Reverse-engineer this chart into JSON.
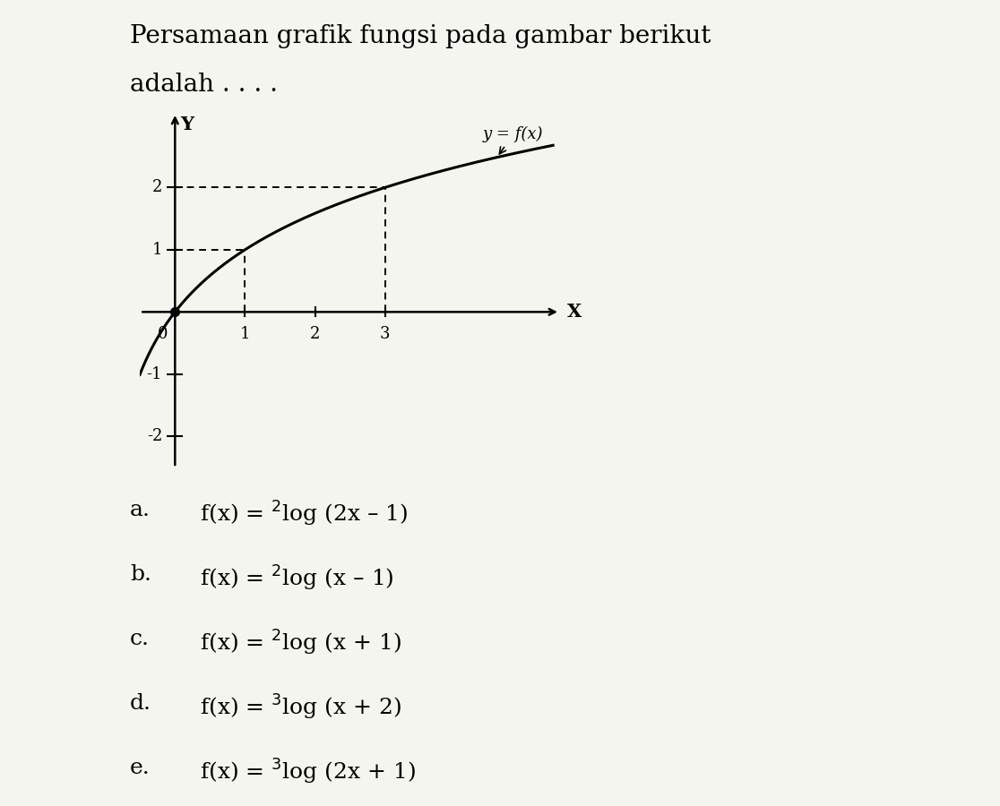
{
  "title_line1": "Persamaan grafik fungsi pada gambar berikut",
  "title_line2": "adalah . . . .",
  "title_fontsize": 20,
  "curve_label": "y = f(x)",
  "curve_color": "#000000",
  "background_color": "#f5f5f0",
  "xlim": [
    -0.5,
    5.5
  ],
  "ylim": [
    -2.5,
    3.2
  ],
  "x_ticks": [
    1,
    2,
    3
  ],
  "y_ticks": [
    -2,
    -1,
    1,
    2
  ],
  "dot_x": 0.0,
  "dot_y": 0.0,
  "dashed_x1": 1.0,
  "dashed_y1": 1.0,
  "dashed_x2": 3.0,
  "dashed_y2": 2.0,
  "options_labels": [
    "a.",
    "b.",
    "c.",
    "d.",
    "e."
  ],
  "options_formulas": [
    "f(x) = $^{2}$log (2x – 1)",
    "f(x) = $^{2}$log (x – 1)",
    "f(x) = $^{2}$log (x + 1)",
    "f(x) = $^{3}$log (x + 2)",
    "f(x) = $^{3}$log (2x + 1)"
  ]
}
